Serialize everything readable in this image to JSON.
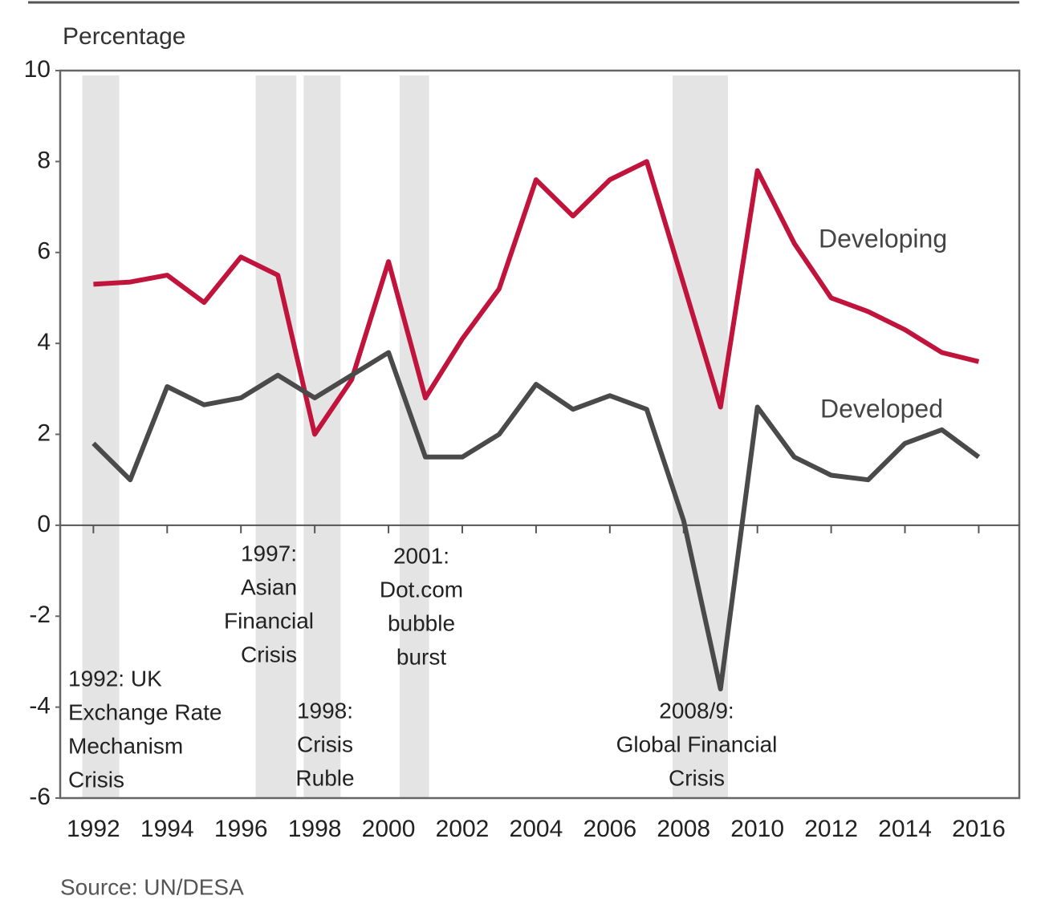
{
  "chart_data": {
    "type": "line",
    "y_axis_label": "Percentage",
    "source": "Source: UN/DESA",
    "x": [
      1992,
      1993,
      1994,
      1995,
      1996,
      1997,
      1998,
      1999,
      2000,
      2001,
      2002,
      2003,
      2004,
      2005,
      2006,
      2007,
      2008,
      2009,
      2010,
      2011,
      2012,
      2013,
      2014,
      2015,
      2016
    ],
    "series": [
      {
        "name": "Developing",
        "color": "#c0143c",
        "values": [
          5.3,
          5.35,
          5.5,
          4.9,
          5.9,
          5.5,
          2.0,
          3.2,
          5.8,
          2.8,
          4.1,
          5.2,
          7.6,
          6.8,
          7.6,
          8.0,
          5.3,
          2.6,
          7.8,
          6.2,
          5.0,
          4.7,
          4.3,
          3.8,
          3.6
        ]
      },
      {
        "name": "Developed",
        "color": "#4a4a4a",
        "values": [
          1.8,
          1.0,
          3.05,
          2.65,
          2.8,
          3.3,
          2.8,
          3.3,
          3.8,
          1.5,
          1.5,
          2.0,
          3.1,
          2.55,
          2.85,
          2.55,
          0.1,
          -3.6,
          2.6,
          1.5,
          1.1,
          1.0,
          1.8,
          2.1,
          1.5
        ]
      }
    ],
    "shaded_periods": [
      [
        1991.7,
        1992.7
      ],
      [
        1996.4,
        1997.5
      ],
      [
        1997.7,
        1998.7
      ],
      [
        2000.3,
        2001.1
      ],
      [
        2007.7,
        2009.2
      ]
    ],
    "shade_color": "#e4e4e4",
    "annotations": [
      [
        "1992: UK",
        "Exchange Rate",
        "Mechanism",
        "Crisis"
      ],
      [
        "1997:",
        "Asian",
        "Financial",
        "Crisis"
      ],
      [
        "1998:",
        "Crisis",
        "Ruble"
      ],
      [
        "2001:",
        "Dot.com",
        "bubble",
        "burst"
      ],
      [
        "2008/9:",
        "Global Financial",
        "Crisis"
      ]
    ],
    "xlim": [
      1991.1,
      2017.1
    ],
    "xticks": [
      1992,
      1994,
      1996,
      1998,
      2000,
      2002,
      2004,
      2006,
      2008,
      2010,
      2012,
      2014,
      2016
    ],
    "ylim": [
      -6,
      10
    ],
    "yticks": [
      -6,
      -4,
      -2,
      0,
      2,
      4,
      6,
      8,
      10
    ]
  }
}
